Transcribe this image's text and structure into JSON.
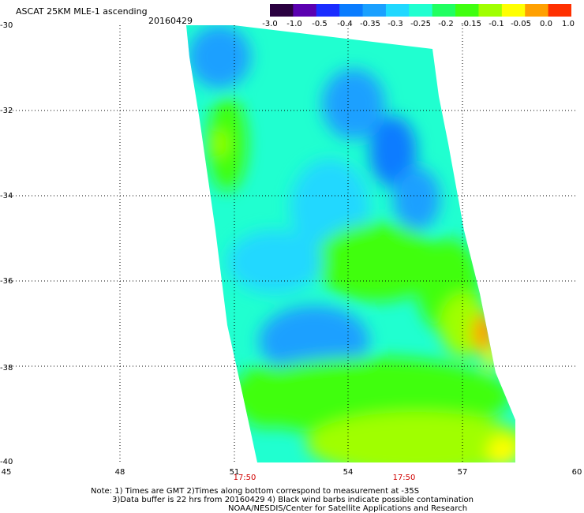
{
  "header": {
    "title": "ASCAT 25KM MLE-1 ascending",
    "date": "20160429"
  },
  "colorbar": {
    "labels": [
      "-3.0",
      "-1.0",
      "-0.5",
      "-0.4",
      "-0.35",
      "-0.3",
      "-0.25",
      "-0.2",
      "-0.15",
      "-0.1",
      "-0.05",
      "0.0",
      "1.0"
    ],
    "colors": [
      "#2a0040",
      "#5a00b0",
      "#1a2cff",
      "#0a7cff",
      "#1aa0ff",
      "#20d8ff",
      "#20ffd0",
      "#20ff60",
      "#40ff10",
      "#a0ff00",
      "#ffff00",
      "#ffa000",
      "#ff3000"
    ]
  },
  "map": {
    "lat_labels": [
      "-30",
      "-32",
      "-34",
      "-36",
      "-38",
      "-40"
    ],
    "lon_labels": [
      "45",
      "48",
      "51",
      "54",
      "57",
      "60"
    ],
    "lat_range": [
      -40,
      -30
    ],
    "lon_range": [
      45,
      60
    ],
    "time_labels": [
      {
        "time": "17:50",
        "lon": 51
      },
      {
        "time": "17:50",
        "lon": 56.3
      }
    ]
  },
  "notes": {
    "line1": "Note: 1) Times are GMT 2)Times along bottom correspond to measurement at -35S",
    "line2": "3)Data buffer is 22 hrs from 20160429 4) Black wind barbs indicate possible contamination",
    "line3": "NOAA/NESDIS/Center for Satellite Applications and Research"
  }
}
